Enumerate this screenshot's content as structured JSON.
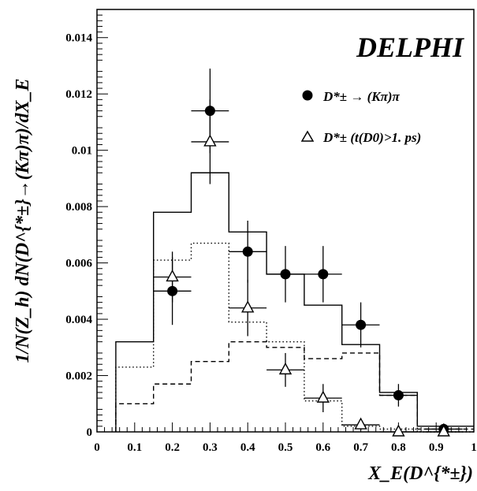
{
  "chart_data": {
    "type": "line",
    "title": "DELPHI",
    "xlabel": "X_E(D^{*±})",
    "ylabel": "1/N(Z_h) dN(D^{*±}→(Kπ)π)/dX_E",
    "xlim": [
      0,
      1
    ],
    "ylim": [
      0,
      0.015
    ],
    "x_ticks": [
      "0",
      "0.1",
      "0.2",
      "0.3",
      "0.4",
      "0.5",
      "0.6",
      "0.7",
      "0.8",
      "0.9",
      "1"
    ],
    "y_ticks": [
      "0",
      "0.002",
      "0.004",
      "0.006",
      "0.008",
      "0.01",
      "0.012",
      "0.014"
    ],
    "grid": false,
    "legend": [
      {
        "marker": "filled-circle",
        "label": "D*± → (Kπ)π"
      },
      {
        "marker": "open-triangle",
        "label": "D*± (t(D0)>1. ps)"
      }
    ],
    "series": [
      {
        "kind": "data-points",
        "marker": "filled-circle",
        "x": [
          0.2,
          0.3,
          0.4,
          0.5,
          0.6,
          0.7,
          0.8,
          0.92
        ],
        "y": [
          0.005,
          0.0114,
          0.0064,
          0.0056,
          0.0056,
          0.0038,
          0.0013,
          0.0001
        ],
        "y_err": [
          0.0012,
          0.0015,
          0.0011,
          0.001,
          0.001,
          0.0008,
          0.0004,
          0.0002
        ],
        "x_err": [
          0.05,
          0.05,
          0.05,
          0.05,
          0.05,
          0.05,
          0.05,
          0.05
        ]
      },
      {
        "kind": "data-points",
        "marker": "open-triangle",
        "x": [
          0.2,
          0.3,
          0.4,
          0.5,
          0.6,
          0.7,
          0.8,
          0.92
        ],
        "y": [
          0.0055,
          0.0103,
          0.0044,
          0.0022,
          0.0012,
          0.00025,
          0.0,
          0.0
        ],
        "y_err": [
          0.0009,
          0.0015,
          0.001,
          0.0006,
          0.0005,
          0.0002,
          0.0002,
          0.0001
        ],
        "x_err": [
          0.05,
          0.05,
          0.05,
          0.05,
          0.05,
          0.05,
          0.05,
          0.05
        ]
      },
      {
        "kind": "histogram",
        "style": "solid",
        "bin_edges": [
          0.05,
          0.15,
          0.25,
          0.35,
          0.45,
          0.55,
          0.65,
          0.75,
          0.85,
          0.95,
          1.0
        ],
        "values": [
          0.0032,
          0.0078,
          0.0092,
          0.0071,
          0.0056,
          0.0045,
          0.0031,
          0.0014,
          0.0002,
          0.0002
        ]
      },
      {
        "kind": "histogram",
        "style": "dotted",
        "bin_edges": [
          0.05,
          0.15,
          0.25,
          0.35,
          0.45,
          0.55,
          0.65,
          0.75,
          0.85,
          0.95,
          1.0
        ],
        "values": [
          0.0023,
          0.0061,
          0.0067,
          0.0039,
          0.0032,
          0.0011,
          0.0002,
          0.0001,
          0.0,
          0.0
        ]
      },
      {
        "kind": "histogram",
        "style": "dashed",
        "bin_edges": [
          0.05,
          0.15,
          0.25,
          0.35,
          0.45,
          0.55,
          0.65,
          0.75,
          0.85,
          0.95,
          1.0
        ],
        "values": [
          0.001,
          0.0017,
          0.0025,
          0.0032,
          0.003,
          0.0026,
          0.0028,
          0.0013,
          0.0001,
          0.0001
        ]
      }
    ]
  }
}
